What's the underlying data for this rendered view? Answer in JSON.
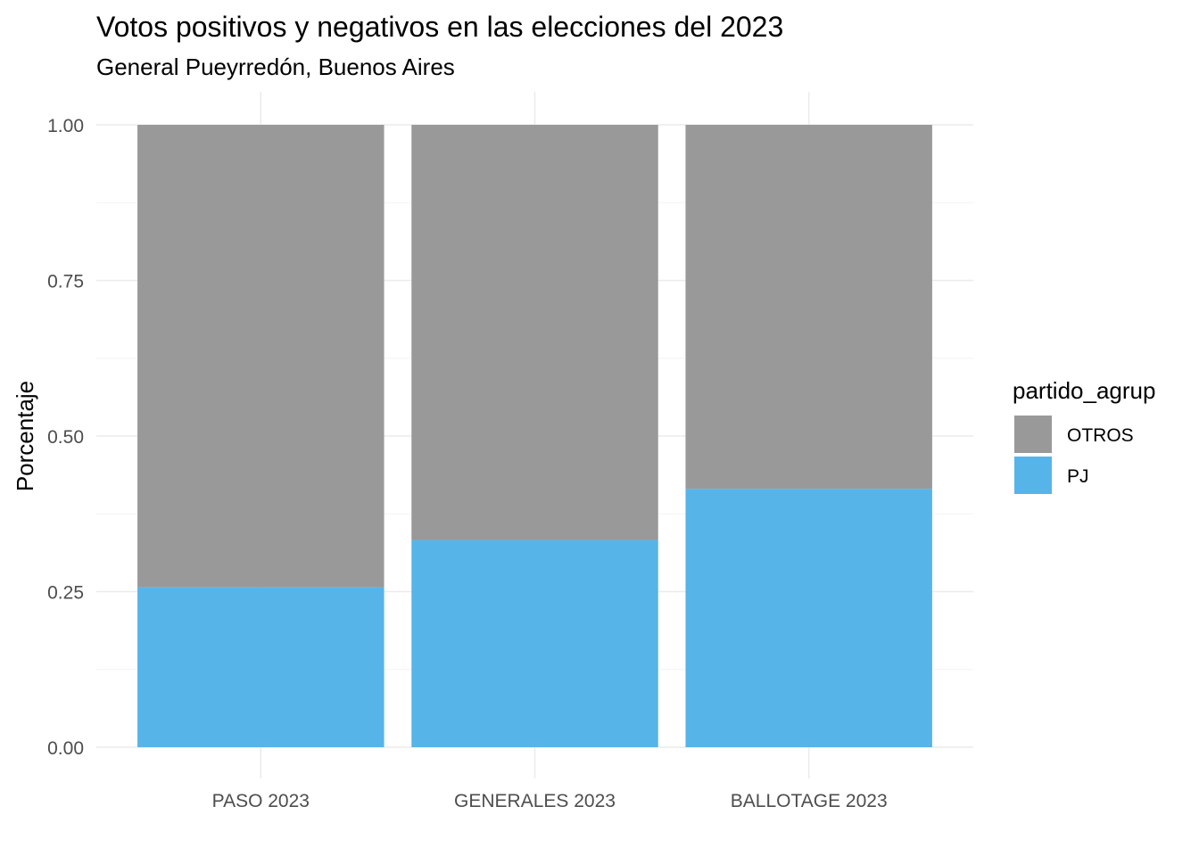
{
  "chart_data": {
    "type": "bar",
    "stacked": true,
    "title": "Votos positivos y negativos en las elecciones del 2023",
    "subtitle": "General Pueyrredón, Buenos Aires",
    "xlabel": "",
    "ylabel": "Porcentaje",
    "ylim": [
      0,
      1
    ],
    "y_ticks": [
      "0.00",
      "0.25",
      "0.50",
      "0.75",
      "1.00"
    ],
    "y_tick_values": [
      0,
      0.25,
      0.5,
      0.75,
      1.0
    ],
    "categories": [
      "PASO 2023",
      "GENERALES 2023",
      "BALLOTAGE 2023"
    ],
    "series": [
      {
        "name": "PJ",
        "color": "#56B4E9",
        "values": [
          0.257,
          0.333,
          0.415
        ]
      },
      {
        "name": "OTROS",
        "color": "#999999",
        "values": [
          0.743,
          0.667,
          0.585
        ]
      }
    ],
    "legend": {
      "title": "partido_agrup",
      "position": "right",
      "entries": [
        {
          "label": "OTROS",
          "color": "#999999"
        },
        {
          "label": "PJ",
          "color": "#56B4E9"
        }
      ]
    },
    "grid": true
  }
}
